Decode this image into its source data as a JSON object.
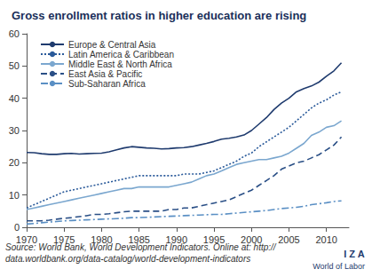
{
  "chart_data": {
    "type": "line",
    "title": "Gross enrollment ratios in higher education are rising",
    "source": [
      "Source: World Bank, World Development Indicators. Online at: http://",
      "data.worldbank.org/data-catalog/world-development-indicators"
    ],
    "logo": [
      "I Z A",
      "World of Labor"
    ],
    "x": [
      1970,
      1971,
      1972,
      1973,
      1974,
      1975,
      1976,
      1977,
      1978,
      1979,
      1980,
      1981,
      1982,
      1983,
      1984,
      1985,
      1986,
      1987,
      1988,
      1989,
      1990,
      1991,
      1992,
      1993,
      1994,
      1995,
      1996,
      1997,
      1998,
      1999,
      2000,
      2001,
      2002,
      2003,
      2004,
      2005,
      2006,
      2007,
      2008,
      2009,
      2010,
      2011,
      2012
    ],
    "series": [
      {
        "name": "Europe & Central Asia",
        "color": "#1f3b6e",
        "line_style": "solid",
        "values": [
          23.2,
          23.1,
          22.8,
          22.6,
          22.6,
          22.8,
          22.9,
          22.7,
          22.8,
          22.9,
          23.0,
          23.4,
          24.0,
          24.6,
          25.0,
          24.8,
          24.6,
          24.5,
          24.3,
          24.4,
          24.6,
          24.7,
          25.0,
          25.5,
          26.0,
          26.6,
          27.3,
          27.6,
          28.0,
          28.6,
          30.0,
          32.0,
          34.0,
          36.5,
          38.5,
          40.0,
          42.0,
          43.0,
          43.8,
          45.0,
          46.8,
          48.5,
          51.0
        ]
      },
      {
        "name": "Latin America & Caribbean",
        "color": "#2a5a9a",
        "line_style": "dotted",
        "values": [
          6,
          7,
          8,
          9,
          10,
          11,
          11.5,
          12,
          12.5,
          13,
          13.5,
          14,
          14.5,
          15,
          15.5,
          16,
          16,
          16,
          16,
          16,
          16,
          16.5,
          16.5,
          16.5,
          17,
          17.5,
          18.5,
          19.5,
          20.5,
          22,
          23,
          25,
          26.5,
          28,
          29.5,
          31,
          33,
          35,
          37,
          38.5,
          39.5,
          41,
          42
        ]
      },
      {
        "name": "Middle East & North Africa",
        "color": "#7ba7cf",
        "line_style": "solid",
        "values": [
          5.5,
          6,
          6.5,
          7,
          7.5,
          8,
          8.5,
          9,
          9.5,
          10,
          10.5,
          11,
          11.5,
          12,
          12,
          12.5,
          12.5,
          12.5,
          12.5,
          12.5,
          13,
          13.5,
          14,
          15,
          16,
          16.5,
          17.5,
          18.5,
          19.5,
          20,
          20.5,
          21,
          21,
          21.5,
          22,
          23,
          24.5,
          26,
          28.5,
          29.5,
          31,
          31.5,
          33
        ]
      },
      {
        "name": "East Asia & Pacific",
        "color": "#2a4f86",
        "line_style": "dashed",
        "values": [
          2,
          2,
          2,
          2.2,
          2.5,
          2.8,
          3,
          3.3,
          3.6,
          4,
          4,
          4.2,
          4.5,
          4.8,
          5,
          5,
          5,
          5,
          5,
          5.5,
          5.5,
          6,
          6,
          6.5,
          7,
          7.5,
          8,
          8.5,
          9.5,
          10.5,
          11.5,
          13,
          14.5,
          16,
          18,
          19,
          20,
          20.5,
          21.5,
          22.5,
          24,
          25.5,
          28
        ]
      },
      {
        "name": "Sub-Saharan Africa",
        "color": "#5a8fc4",
        "line_style": "dashdot",
        "values": [
          1,
          1.2,
          1.4,
          1.6,
          1.8,
          2,
          2.1,
          2.2,
          2.3,
          2.4,
          2.5,
          2.6,
          2.7,
          2.8,
          3,
          3,
          3.1,
          3.2,
          3.3,
          3.4,
          3.5,
          3.6,
          3.7,
          3.8,
          3.9,
          4,
          4,
          4.2,
          4.4,
          4.6,
          4.8,
          5,
          5.2,
          5.5,
          5.8,
          6,
          6.2,
          6.5,
          7,
          7.3,
          7.6,
          8,
          8.2
        ]
      }
    ],
    "xlim": [
      1970,
      2013
    ],
    "xticks": [
      1970,
      1975,
      1980,
      1985,
      1990,
      1995,
      2000,
      2005,
      2010
    ],
    "ylim": [
      0,
      60
    ],
    "yticks": [
      0,
      10,
      20,
      30,
      40,
      50,
      60
    ],
    "grid": false,
    "legend": "top-left"
  }
}
